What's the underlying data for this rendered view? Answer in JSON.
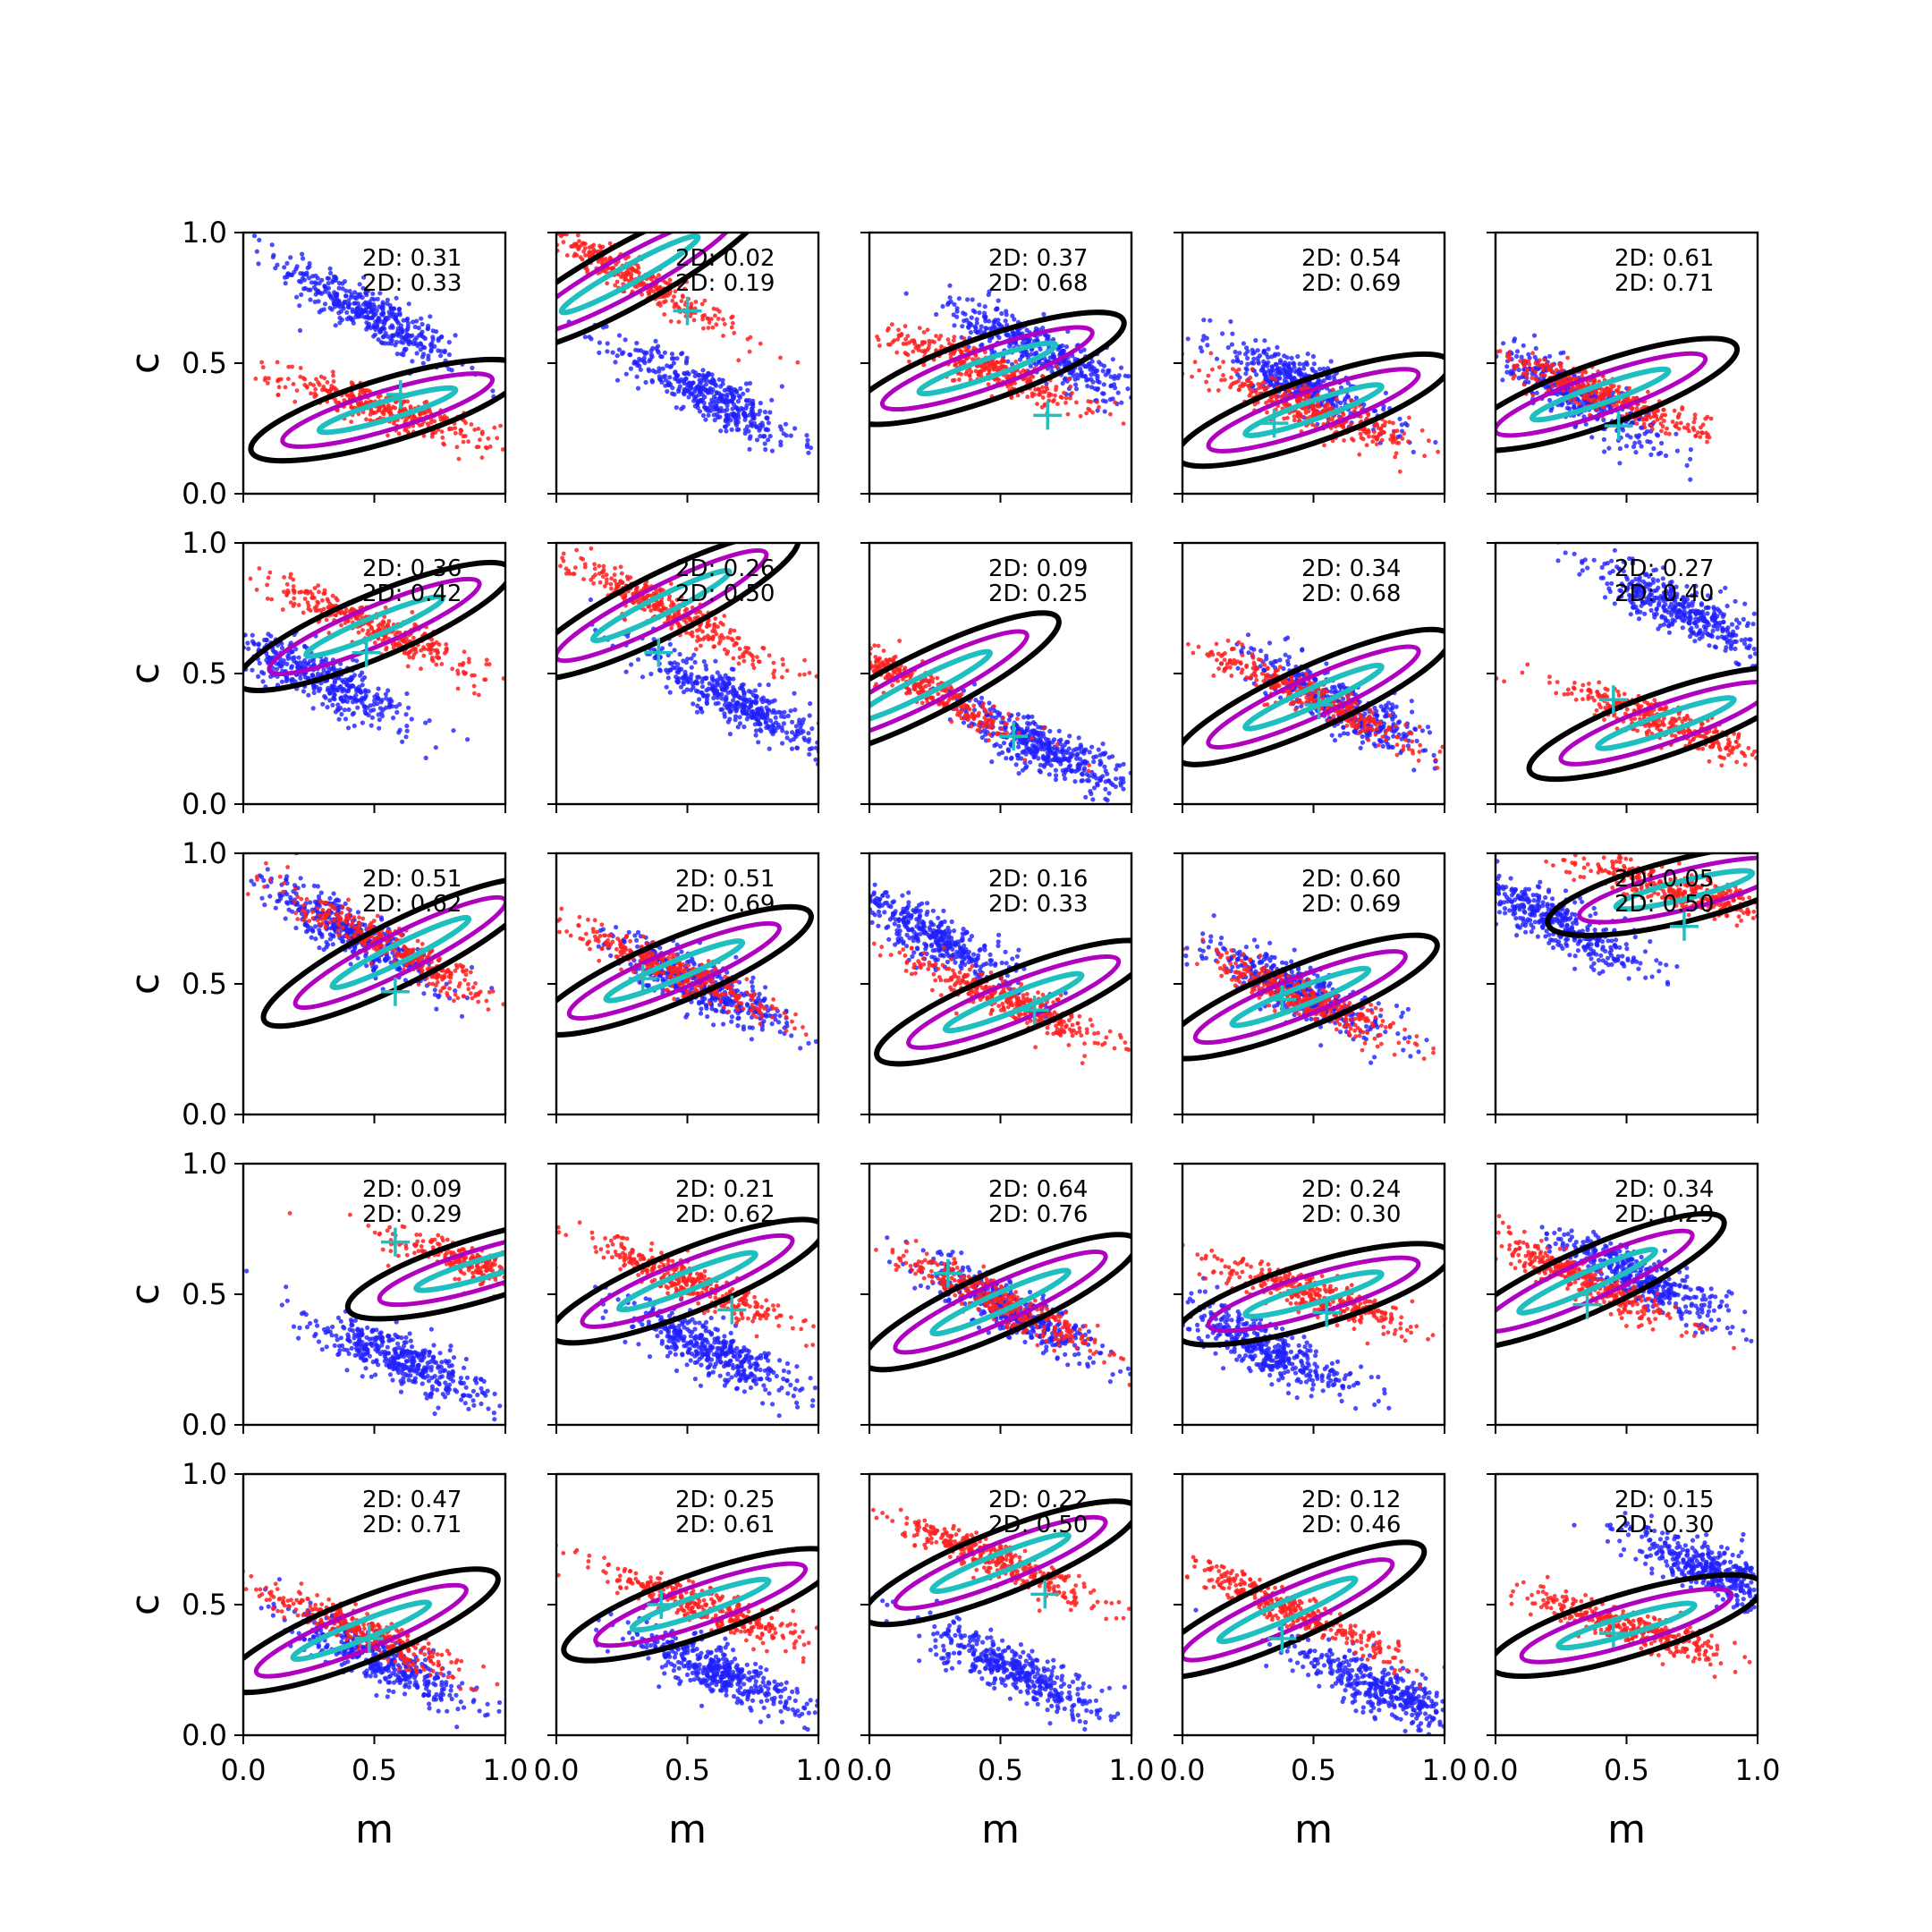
{
  "figure": {
    "xlabel": "m",
    "ylabel": "c",
    "colors": {
      "blue_points": "#1f1fff",
      "red_points": "#ff2020",
      "contour_outer": "#000000",
      "contour_middle": "#b000c0",
      "contour_inner": "#20bfbf",
      "true_marker": "#20bfbf"
    },
    "ticks": {
      "x": [
        "0.0",
        "0.5",
        "1.0"
      ],
      "y": [
        "0.0",
        "0.5",
        "1.0"
      ]
    }
  },
  "chart_data": {
    "type": "scatter",
    "grid": false,
    "layout": "5x5 grid of panels",
    "xlabel": "m",
    "ylabel": "c",
    "xlim": [
      0,
      1
    ],
    "ylim": [
      0,
      1
    ],
    "panels": [
      {
        "annot": [
          "2D: 0.31",
          "2D: 0.33"
        ],
        "blue": {
          "mx": 0.48,
          "cx": 0.69,
          "slope": -0.55
        },
        "red": {
          "mx": 0.55,
          "cx": 0.32,
          "slope": -0.3
        },
        "true": [
          0.6,
          0.38
        ]
      },
      {
        "annot": [
          "2D: 0.02",
          "2D: 0.19"
        ],
        "blue": {
          "mx": 0.58,
          "cx": 0.38,
          "slope": -0.5
        },
        "red": {
          "mx": 0.28,
          "cx": 0.84,
          "slope": -0.55
        },
        "true": [
          0.5,
          0.7
        ]
      },
      {
        "annot": [
          "2D: 0.37",
          "2D: 0.68"
        ],
        "blue": {
          "mx": 0.65,
          "cx": 0.55,
          "slope": -0.45
        },
        "red": {
          "mx": 0.45,
          "cx": 0.48,
          "slope": -0.35
        },
        "true": [
          0.68,
          0.3
        ]
      },
      {
        "annot": [
          "2D: 0.54",
          "2D: 0.69"
        ],
        "blue": {
          "mx": 0.45,
          "cx": 0.42,
          "slope": -0.45
        },
        "red": {
          "mx": 0.5,
          "cx": 0.32,
          "slope": -0.35
        },
        "true": [
          0.35,
          0.27
        ]
      },
      {
        "annot": [
          "2D: 0.61",
          "2D: 0.71"
        ],
        "blue": {
          "mx": 0.3,
          "cx": 0.38,
          "slope": -0.5
        },
        "red": {
          "mx": 0.4,
          "cx": 0.38,
          "slope": -0.35
        },
        "true": [
          0.47,
          0.26
        ]
      },
      {
        "annot": [
          "2D: 0.36",
          "2D: 0.42"
        ],
        "blue": {
          "mx": 0.3,
          "cx": 0.48,
          "slope": -0.45
        },
        "red": {
          "mx": 0.5,
          "cx": 0.68,
          "slope": -0.42
        },
        "true": [
          0.47,
          0.58
        ]
      },
      {
        "annot": [
          "2D: 0.26",
          "2D: 0.50"
        ],
        "blue": {
          "mx": 0.68,
          "cx": 0.4,
          "slope": -0.5
        },
        "red": {
          "mx": 0.4,
          "cx": 0.76,
          "slope": -0.5
        },
        "true": [
          0.39,
          0.58
        ]
      },
      {
        "annot": [
          "2D: 0.09",
          "2D: 0.25"
        ],
        "blue": {
          "mx": 0.65,
          "cx": 0.22,
          "slope": -0.45
        },
        "red": {
          "mx": 0.2,
          "cx": 0.45,
          "slope": -0.5
        },
        "true": [
          0.55,
          0.26
        ]
      },
      {
        "annot": [
          "2D: 0.34",
          "2D: 0.68"
        ],
        "blue": {
          "mx": 0.6,
          "cx": 0.38,
          "slope": -0.45
        },
        "red": {
          "mx": 0.5,
          "cx": 0.41,
          "slope": -0.45
        },
        "true": [
          0.52,
          0.38
        ]
      },
      {
        "annot": [
          "2D: 0.27",
          "2D: 0.40"
        ],
        "blue": {
          "mx": 0.72,
          "cx": 0.74,
          "slope": -0.45
        },
        "red": {
          "mx": 0.65,
          "cx": 0.31,
          "slope": -0.35
        },
        "true": [
          0.45,
          0.4
        ]
      },
      {
        "annot": [
          "2D: 0.51",
          "2D: 0.62"
        ],
        "blue": {
          "mx": 0.4,
          "cx": 0.7,
          "slope": -0.55
        },
        "red": {
          "mx": 0.6,
          "cx": 0.62,
          "slope": -0.5
        },
        "true": [
          0.58,
          0.47
        ]
      },
      {
        "annot": [
          "2D: 0.51",
          "2D: 0.69"
        ],
        "blue": {
          "mx": 0.55,
          "cx": 0.5,
          "slope": -0.45
        },
        "red": {
          "mx": 0.45,
          "cx": 0.55,
          "slope": -0.42
        },
        "true": [
          0.33,
          0.52
        ]
      },
      {
        "annot": [
          "2D: 0.16",
          "2D: 0.33"
        ],
        "blue": {
          "mx": 0.25,
          "cx": 0.68,
          "slope": -0.5
        },
        "red": {
          "mx": 0.55,
          "cx": 0.43,
          "slope": -0.4
        },
        "true": [
          0.63,
          0.4
        ]
      },
      {
        "annot": [
          "2D: 0.60",
          "2D: 0.69"
        ],
        "blue": {
          "mx": 0.45,
          "cx": 0.47,
          "slope": -0.45
        },
        "red": {
          "mx": 0.45,
          "cx": 0.45,
          "slope": -0.4
        },
        "true": [
          0.38,
          0.44
        ]
      },
      {
        "annot": [
          "2D: 0.05",
          "2D: 0.50"
        ],
        "blue": {
          "mx": 0.22,
          "cx": 0.74,
          "slope": -0.45
        },
        "red": {
          "mx": 0.72,
          "cx": 0.86,
          "slope": -0.25
        },
        "true": [
          0.72,
          0.72
        ]
      },
      {
        "annot": [
          "2D: 0.09",
          "2D: 0.29"
        ],
        "blue": {
          "mx": 0.6,
          "cx": 0.25,
          "slope": -0.4
        },
        "red": {
          "mx": 0.92,
          "cx": 0.6,
          "slope": -0.3
        },
        "true": [
          0.58,
          0.7
        ]
      },
      {
        "annot": [
          "2D: 0.21",
          "2D: 0.62"
        ],
        "blue": {
          "mx": 0.6,
          "cx": 0.28,
          "slope": -0.45
        },
        "red": {
          "mx": 0.5,
          "cx": 0.55,
          "slope": -0.4
        },
        "true": [
          0.67,
          0.44
        ]
      },
      {
        "annot": [
          "2D: 0.64",
          "2D: 0.76"
        ],
        "blue": {
          "mx": 0.55,
          "cx": 0.43,
          "slope": -0.45
        },
        "red": {
          "mx": 0.5,
          "cx": 0.47,
          "slope": -0.45
        },
        "true": [
          0.3,
          0.58
        ]
      },
      {
        "annot": [
          "2D: 0.24",
          "2D: 0.30"
        ],
        "blue": {
          "mx": 0.3,
          "cx": 0.3,
          "slope": -0.45
        },
        "red": {
          "mx": 0.5,
          "cx": 0.5,
          "slope": -0.3
        },
        "true": [
          0.55,
          0.43
        ]
      },
      {
        "annot": [
          "2D: 0.34",
          "2D: 0.29"
        ],
        "blue": {
          "mx": 0.55,
          "cx": 0.56,
          "slope": -0.45
        },
        "red": {
          "mx": 0.35,
          "cx": 0.55,
          "slope": -0.45
        },
        "true": [
          0.35,
          0.46
        ]
      },
      {
        "annot": [
          "2D: 0.47",
          "2D: 0.71"
        ],
        "blue": {
          "mx": 0.5,
          "cx": 0.3,
          "slope": -0.45
        },
        "red": {
          "mx": 0.45,
          "cx": 0.4,
          "slope": -0.4
        },
        "true": [
          0.48,
          0.37
        ]
      },
      {
        "annot": [
          "2D: 0.25",
          "2D: 0.61"
        ],
        "blue": {
          "mx": 0.6,
          "cx": 0.25,
          "slope": -0.4
        },
        "red": {
          "mx": 0.55,
          "cx": 0.5,
          "slope": -0.35
        },
        "true": [
          0.4,
          0.5
        ]
      },
      {
        "annot": [
          "2D: 0.22",
          "2D: 0.50"
        ],
        "blue": {
          "mx": 0.55,
          "cx": 0.25,
          "slope": -0.45
        },
        "red": {
          "mx": 0.5,
          "cx": 0.66,
          "slope": -0.4
        },
        "true": [
          0.67,
          0.54
        ]
      },
      {
        "annot": [
          "2D: 0.12",
          "2D: 0.46"
        ],
        "blue": {
          "mx": 0.75,
          "cx": 0.18,
          "slope": -0.45
        },
        "red": {
          "mx": 0.4,
          "cx": 0.48,
          "slope": -0.45
        },
        "true": [
          0.38,
          0.37
        ]
      },
      {
        "annot": [
          "2D: 0.15",
          "2D: 0.30"
        ],
        "blue": {
          "mx": 0.85,
          "cx": 0.62,
          "slope": -0.4
        },
        "red": {
          "mx": 0.5,
          "cx": 0.42,
          "slope": -0.3
        },
        "true": [
          0.45,
          0.39
        ]
      }
    ]
  }
}
